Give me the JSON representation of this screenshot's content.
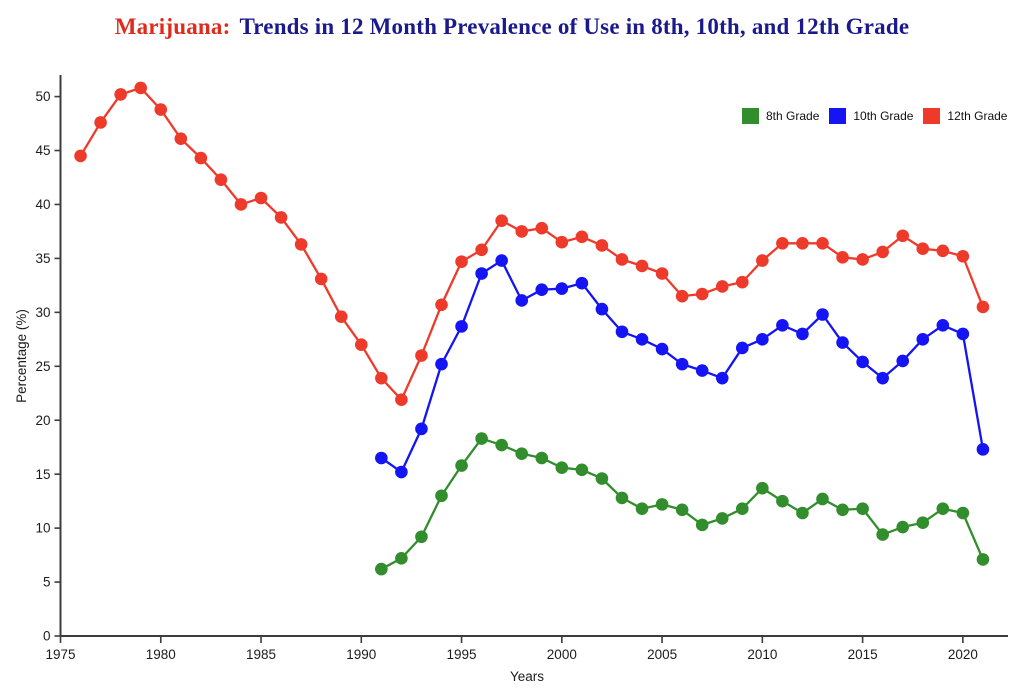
{
  "title": {
    "prefix": "Marijuana:",
    "rest": "Trends in 12 Month Prevalence of Use in 8th, 10th, and 12th Grade",
    "prefix_color": "#e02a1c",
    "rest_color": "#1a1a8c"
  },
  "chart_data": {
    "type": "line",
    "xlabel": "Years",
    "ylabel": "Percentage (%)",
    "xlim": [
      1975,
      2022.25
    ],
    "ylim": [
      0,
      52
    ],
    "xticks": [
      1975,
      1980,
      1985,
      1990,
      1995,
      2000,
      2005,
      2010,
      2015,
      2020
    ],
    "yticks": [
      0,
      5,
      10,
      15,
      20,
      25,
      30,
      35,
      40,
      45,
      50
    ],
    "grid": false,
    "legend_position": "top-right",
    "axis_color": "#3c3c3c",
    "tick_label_color": "#1c1c1c",
    "marker": "circle",
    "series": [
      {
        "name": "8th Grade",
        "color": "#328d2d",
        "years": [
          1991,
          1992,
          1993,
          1994,
          1995,
          1996,
          1997,
          1998,
          1999,
          2000,
          2001,
          2002,
          2003,
          2004,
          2005,
          2006,
          2007,
          2008,
          2009,
          2010,
          2011,
          2012,
          2013,
          2014,
          2015,
          2016,
          2017,
          2018,
          2019,
          2020,
          2021
        ],
        "values": [
          6.2,
          7.2,
          9.2,
          13.0,
          15.8,
          18.3,
          17.7,
          16.9,
          16.5,
          15.6,
          15.4,
          14.6,
          12.8,
          11.8,
          12.2,
          11.7,
          10.3,
          10.9,
          11.8,
          13.7,
          12.5,
          11.4,
          12.7,
          11.7,
          11.8,
          9.4,
          10.1,
          10.5,
          11.8,
          11.4,
          7.1
        ]
      },
      {
        "name": "10th Grade",
        "color": "#1414f5",
        "years": [
          1991,
          1992,
          1993,
          1994,
          1995,
          1996,
          1997,
          1998,
          1999,
          2000,
          2001,
          2002,
          2003,
          2004,
          2005,
          2006,
          2007,
          2008,
          2009,
          2010,
          2011,
          2012,
          2013,
          2014,
          2015,
          2016,
          2017,
          2018,
          2019,
          2020,
          2021
        ],
        "values": [
          16.5,
          15.2,
          19.2,
          25.2,
          28.7,
          33.6,
          34.8,
          31.1,
          32.1,
          32.2,
          32.7,
          30.3,
          28.2,
          27.5,
          26.6,
          25.2,
          24.6,
          23.9,
          26.7,
          27.5,
          28.8,
          28.0,
          29.8,
          27.2,
          25.4,
          23.9,
          25.5,
          27.5,
          28.8,
          28.0,
          17.3
        ]
      },
      {
        "name": "12th Grade",
        "color": "#ee3a2b",
        "years": [
          1976,
          1977,
          1978,
          1979,
          1980,
          1981,
          1982,
          1983,
          1984,
          1985,
          1986,
          1987,
          1988,
          1989,
          1990,
          1991,
          1992,
          1993,
          1994,
          1995,
          1996,
          1997,
          1998,
          1999,
          2000,
          2001,
          2002,
          2003,
          2004,
          2005,
          2006,
          2007,
          2008,
          2009,
          2010,
          2011,
          2012,
          2013,
          2014,
          2015,
          2016,
          2017,
          2018,
          2019,
          2020,
          2021
        ],
        "values": [
          44.5,
          47.6,
          50.2,
          50.8,
          48.8,
          46.1,
          44.3,
          42.3,
          40.0,
          40.6,
          38.8,
          36.3,
          33.1,
          29.6,
          27.0,
          23.9,
          21.9,
          26.0,
          30.7,
          34.7,
          35.8,
          38.5,
          37.5,
          37.8,
          36.5,
          37.0,
          36.2,
          34.9,
          34.3,
          33.6,
          31.5,
          31.7,
          32.4,
          32.8,
          34.8,
          36.4,
          36.4,
          36.4,
          35.1,
          34.9,
          35.6,
          37.1,
          35.9,
          35.7,
          35.2,
          30.5
        ]
      }
    ]
  }
}
